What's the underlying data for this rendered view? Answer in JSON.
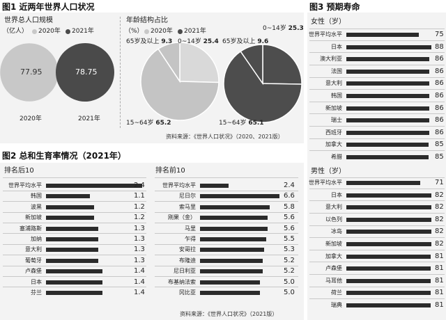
{
  "fig1": {
    "title": "图1 近两年世界人口状况",
    "pop": {
      "title": "世界总人口规模",
      "unit": "（亿人）",
      "legend": [
        "2020年",
        "2021年"
      ],
      "years": [
        "2020年",
        "2021年"
      ],
      "values": [
        77.95,
        78.75
      ],
      "colors": [
        "#c8c8c8",
        "#4a4a4a"
      ]
    },
    "age": {
      "title": "年龄结构占比",
      "unit": "（%）",
      "legend": [
        "2020年",
        "2021年"
      ],
      "categories": [
        "0~14岁",
        "15~64岁",
        "65岁及以上"
      ],
      "y2020": [
        25.4,
        65.2,
        9.3
      ],
      "y2021": [
        25.3,
        65.1,
        9.6
      ],
      "colors2020": [
        "#d9d9d9",
        "#c4c4c4",
        "#c4c4c4"
      ],
      "colors2021": [
        "#4d4d4d",
        "#4d4d4d",
        "#4d4d4d"
      ]
    },
    "source": "资料来源：《世界人口状况》（2020、2021版）"
  },
  "fig2": {
    "title": "图2 总和生育率情况（2021年）",
    "source": "资料来源：《世界人口状况》（2021版）",
    "bottom10": {
      "title": "排名后10",
      "categories": [
        "世界平均水平",
        "韩国",
        "波黑",
        "新加坡",
        "塞浦路斯",
        "加纳",
        "意大利",
        "葡萄牙",
        "卢森堡",
        "日本",
        "芬兰"
      ],
      "values": [
        2.4,
        1.1,
        1.2,
        1.2,
        1.3,
        1.3,
        1.3,
        1.3,
        1.4,
        1.4,
        1.4
      ]
    },
    "top10": {
      "title": "排名前10",
      "categories": [
        "世界平均水平",
        "尼日尔",
        "索马里",
        "刚果（金）",
        "马里",
        "乍得",
        "安哥拉",
        "布隆迪",
        "尼日利亚",
        "布基纳法索",
        "冈比亚"
      ],
      "values": [
        2.4,
        6.6,
        5.8,
        5.6,
        5.6,
        5.5,
        5.3,
        5.2,
        5.2,
        5.0,
        5.0
      ]
    }
  },
  "fig3": {
    "title": "图3 预期寿命",
    "source": "资料来源：《世界人口状况》（2021版）",
    "female": {
      "title": "女性（岁）",
      "categories": [
        "世界平均水平",
        "日本",
        "澳大利亚",
        "法国",
        "意大利",
        "韩国",
        "新加坡",
        "瑞士",
        "西班牙",
        "加拿大",
        "希腊"
      ],
      "values": [
        75,
        88,
        86,
        86,
        86,
        86,
        86,
        86,
        86,
        85,
        85
      ]
    },
    "male": {
      "title": "男性（岁）",
      "categories": [
        "世界平均水平",
        "日本",
        "意大利",
        "以色列",
        "冰岛",
        "新加坡",
        "加拿大",
        "卢森堡",
        "马耳他",
        "荷兰",
        "瑞典"
      ],
      "values": [
        71,
        82,
        82,
        82,
        82,
        82,
        81,
        81,
        81,
        81,
        81
      ]
    }
  },
  "chart_data": [
    {
      "type": "bar",
      "title": "世界总人口规模",
      "ylabel": "亿人",
      "categories": [
        "2020年",
        "2021年"
      ],
      "values": [
        77.95,
        78.75
      ]
    },
    {
      "type": "pie",
      "title": "年龄结构占比",
      "unit": "%",
      "series": [
        {
          "name": "2020年",
          "categories": [
            "0~14岁",
            "15~64岁",
            "65岁及以上"
          ],
          "values": [
            25.4,
            65.2,
            9.3
          ]
        },
        {
          "name": "2021年",
          "categories": [
            "0~14岁",
            "15~64岁",
            "65岁及以上"
          ],
          "values": [
            25.3,
            65.1,
            9.6
          ]
        }
      ]
    },
    {
      "type": "bar",
      "title": "排名后10",
      "categories": [
        "世界平均水平",
        "韩国",
        "波黑",
        "新加坡",
        "塞浦路斯",
        "加纳",
        "意大利",
        "葡萄牙",
        "卢森堡",
        "日本",
        "芬兰"
      ],
      "values": [
        2.4,
        1.1,
        1.2,
        1.2,
        1.3,
        1.3,
        1.3,
        1.3,
        1.4,
        1.4,
        1.4
      ]
    },
    {
      "type": "bar",
      "title": "排名前10",
      "categories": [
        "世界平均水平",
        "尼日尔",
        "索马里",
        "刚果（金）",
        "马里",
        "乍得",
        "安哥拉",
        "布隆迪",
        "尼日利亚",
        "布基纳法索",
        "冈比亚"
      ],
      "values": [
        2.4,
        6.6,
        5.8,
        5.6,
        5.6,
        5.5,
        5.3,
        5.2,
        5.2,
        5.0,
        5.0
      ]
    },
    {
      "type": "bar",
      "title": "女性（岁）",
      "categories": [
        "世界平均水平",
        "日本",
        "澳大利亚",
        "法国",
        "意大利",
        "韩国",
        "新加坡",
        "瑞士",
        "西班牙",
        "加拿大",
        "希腊"
      ],
      "values": [
        75,
        88,
        86,
        86,
        86,
        86,
        86,
        86,
        86,
        85,
        85
      ]
    },
    {
      "type": "bar",
      "title": "男性（岁）",
      "categories": [
        "世界平均水平",
        "日本",
        "意大利",
        "以色列",
        "冰岛",
        "新加坡",
        "加拿大",
        "卢森堡",
        "马耳他",
        "荷兰",
        "瑞典"
      ],
      "values": [
        71,
        82,
        82,
        82,
        82,
        82,
        81,
        81,
        81,
        81,
        81
      ]
    }
  ]
}
